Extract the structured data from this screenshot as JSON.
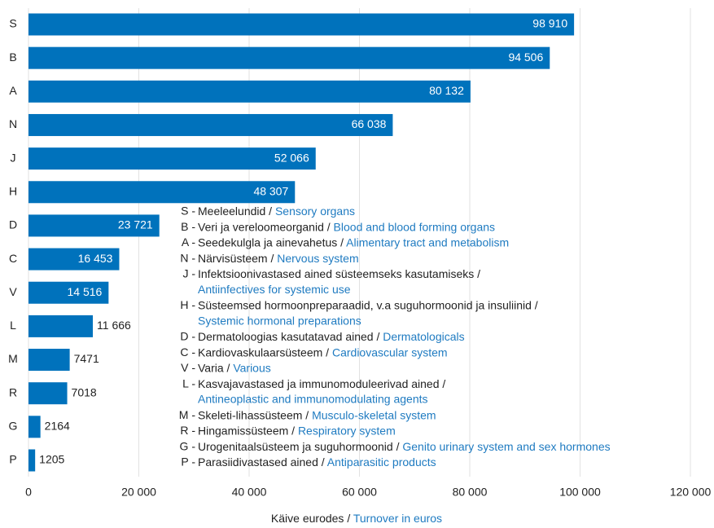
{
  "chart_data": {
    "type": "bar",
    "orientation": "horizontal",
    "categories": [
      "S",
      "B",
      "A",
      "N",
      "J",
      "H",
      "D",
      "C",
      "V",
      "L",
      "M",
      "R",
      "G",
      "P"
    ],
    "values": [
      98910,
      94506,
      80132,
      66038,
      52066,
      48307,
      23721,
      16453,
      14516,
      11666,
      7471,
      7018,
      2164,
      1205
    ],
    "value_labels": [
      "98 910",
      "94 506",
      "80 132",
      "66 038",
      "52 066",
      "48 307",
      "23 721",
      "16 453",
      "14 516",
      "11 666",
      "7471",
      "7018",
      "2164",
      "1205"
    ],
    "color": "#0072bc",
    "xlim": [
      0,
      120000
    ],
    "xticks": [
      0,
      {
        "value": 20000,
        "label": "20 000"
      },
      {
        "value": 40000,
        "label": "40 000"
      },
      {
        "value": 60000,
        "label": "60 000"
      },
      {
        "value": 80000,
        "label": "80 000"
      },
      {
        "value": 100000,
        "label": "100 000"
      },
      {
        "value": 120000,
        "label": "120 000"
      }
    ],
    "grid": true,
    "x_label": {
      "et": "Käive eurodes /",
      "en": "Turnover in euros"
    },
    "legend": [
      {
        "key": "S -",
        "et": "Meeleelundid /",
        "en": "Sensory organs"
      },
      {
        "key": "B -",
        "et": "Veri ja vereloomeorganid /",
        "en": "Blood and blood forming organs"
      },
      {
        "key": "A -",
        "et": "Seedekulgla ja ainevahetus /",
        "en": "Alimentary tract and metabolism"
      },
      {
        "key": "N -",
        "et": "Närvisüsteem /",
        "en": "Nervous system"
      },
      {
        "key": "J -",
        "et": "Infektsioonivastased ained süsteemseks kasutamiseks /",
        "en": "Antiinfectives for systemic use",
        "wrap": true
      },
      {
        "key": "H -",
        "et": "Süsteemsed hormoonpreparaadid, v.a suguhormoonid ja insuliinid /",
        "en": "Systemic hormonal preparations",
        "wrap": true
      },
      {
        "key": "D -",
        "et": "Dermatoloogias kasutatavad ained /",
        "en": "Dermatologicals"
      },
      {
        "key": "C -",
        "et": "Kardiovaskulaarsüsteem /",
        "en": "Cardiovascular system"
      },
      {
        "key": "V -",
        "et": "Varia /",
        "en": "Various"
      },
      {
        "key": "L -",
        "et": "Kasvajavastased ja immunomoduleerivad ained /",
        "en": "Antineoplastic and immunomodulating agents",
        "wrap": true
      },
      {
        "key": "M -",
        "et": "Skeleti-lihassüsteem /",
        "en": "Musculo-skeletal system"
      },
      {
        "key": "R -",
        "et": "Hingamissüsteem /",
        "en": "Respiratory system"
      },
      {
        "key": "G -",
        "et": "Urogenitaalsüsteem ja suguhormoonid /",
        "en": "Genito urinary system and sex hormones"
      },
      {
        "key": "P -",
        "et": "Parasiidivastased ained /",
        "en": "Antiparasitic products"
      }
    ]
  }
}
